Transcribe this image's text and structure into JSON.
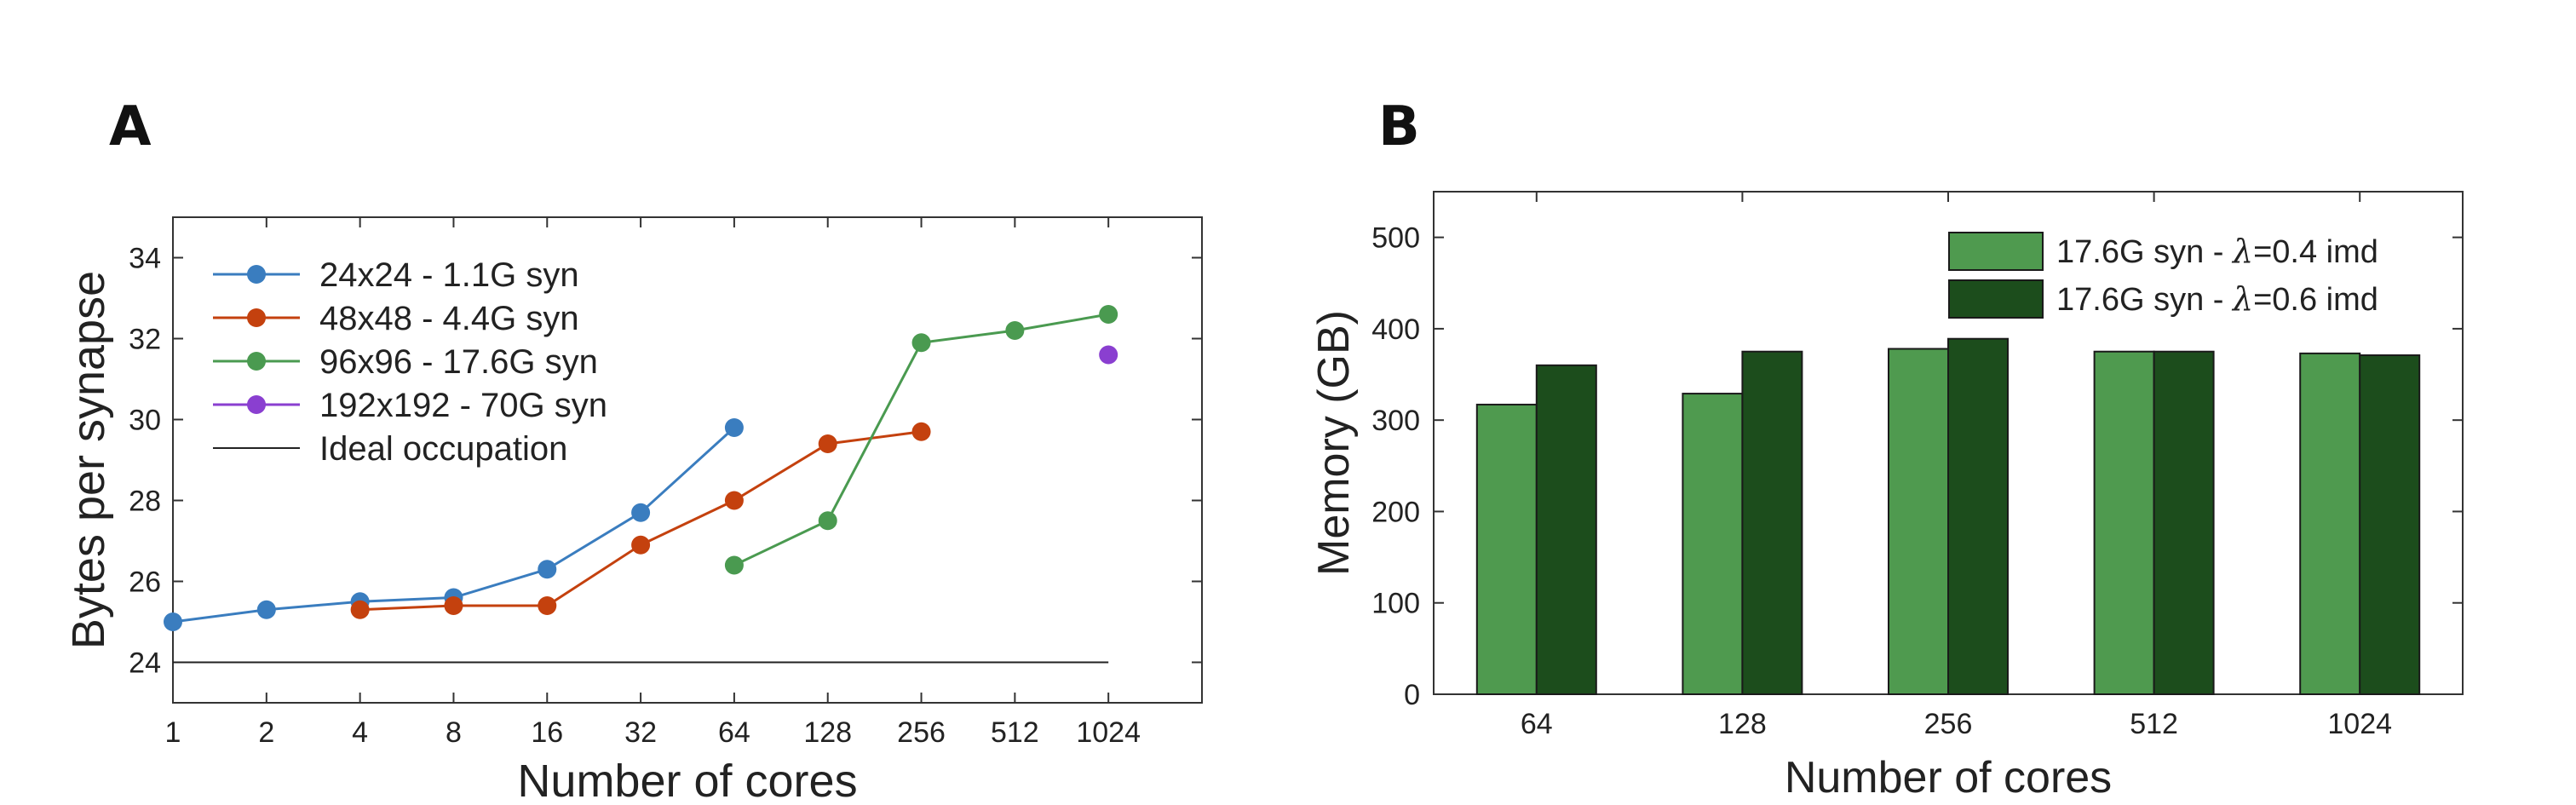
{
  "colors": {
    "blue": "#3a7dbf",
    "orange": "#c4410e",
    "green": "#4a9a50",
    "purple": "#8a3fd0",
    "ideal": "#222222",
    "bar_light": "#4f9a4f",
    "bar_dark": "#1c4d1c",
    "axis": "#333333"
  },
  "chart_data": [
    {
      "panel_label": "A",
      "type": "line",
      "title": "",
      "xlabel": "Number of cores",
      "ylabel": "Bytes per synapse",
      "xscale": "log2",
      "xlim": [
        1,
        2048
      ],
      "ylim": [
        23,
        35
      ],
      "xticks": [
        1,
        2,
        4,
        8,
        16,
        32,
        64,
        128,
        256,
        512,
        1024
      ],
      "xtick_labels": [
        "1",
        "2",
        "4",
        "8",
        "16",
        "32",
        "64",
        "128",
        "256",
        "512",
        "1024"
      ],
      "yticks": [
        24,
        26,
        28,
        30,
        32,
        34
      ],
      "ytick_labels": [
        "24",
        "26",
        "28",
        "30",
        "32",
        "34"
      ],
      "legend_position": "top-left",
      "series": [
        {
          "name": "24x24 - 1.1G syn",
          "color": "#3a7dbf",
          "x": [
            1,
            2,
            4,
            8,
            16,
            32,
            64
          ],
          "y": [
            25.0,
            25.3,
            25.5,
            25.6,
            26.3,
            27.7,
            29.8
          ]
        },
        {
          "name": "48x48 - 4.4G syn",
          "color": "#c4410e",
          "x": [
            4,
            8,
            16,
            32,
            64,
            128,
            256
          ],
          "y": [
            25.3,
            25.4,
            25.4,
            26.9,
            28.0,
            29.4,
            29.7
          ]
        },
        {
          "name": "96x96 - 17.6G syn",
          "color": "#4a9a50",
          "x": [
            64,
            128,
            256,
            512,
            1024
          ],
          "y": [
            26.4,
            27.5,
            31.9,
            32.2,
            32.6
          ]
        },
        {
          "name": "192x192 - 70G syn",
          "color": "#8a3fd0",
          "x": [
            1024
          ],
          "y": [
            31.6
          ]
        }
      ],
      "reference_line": {
        "name": "Ideal occupation",
        "y": 24,
        "x": [
          1,
          1024
        ],
        "color": "#222222"
      }
    },
    {
      "panel_label": "B",
      "type": "bar",
      "title": "",
      "xlabel": "Number of cores",
      "ylabel": "Memory (GB)",
      "categories": [
        "64",
        "128",
        "256",
        "512",
        "1024"
      ],
      "ylim": [
        0,
        550
      ],
      "yticks": [
        0,
        100,
        200,
        300,
        400,
        500
      ],
      "ytick_labels": [
        "0",
        "100",
        "200",
        "300",
        "400",
        "500"
      ],
      "legend_position": "top-right",
      "legend": [
        {
          "prefix": "17.6G syn - ",
          "lambda": "λ",
          "suffix": "=0.4 imd"
        },
        {
          "prefix": "17.6G syn - ",
          "lambda": "λ",
          "suffix": "=0.6 imd"
        }
      ],
      "series": [
        {
          "name": "17.6G syn - λ=0.4 imd",
          "color": "#4f9a4f",
          "values": [
            317,
            329,
            378,
            375,
            373
          ]
        },
        {
          "name": "17.6G syn - λ=0.6 imd",
          "color": "#1c4d1c",
          "values": [
            360,
            375,
            389,
            375,
            371
          ]
        }
      ]
    }
  ]
}
